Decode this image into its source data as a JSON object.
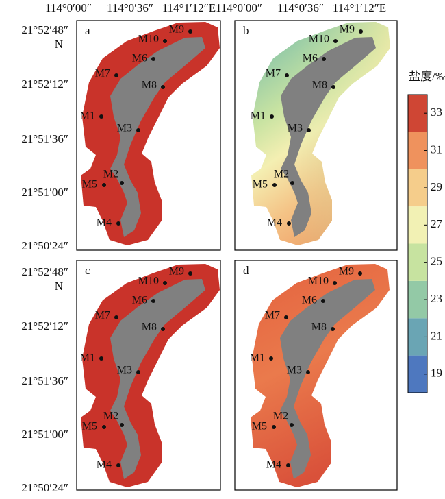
{
  "x_axis_labels": [
    "114°0′00″",
    "114°0′36″",
    "114°1′12″E"
  ],
  "y_axis_labels": [
    "21°52′48″",
    "N",
    "21°52′12″",
    "21°51′36″",
    "21°51′00″",
    "21°50′24″"
  ],
  "panels": [
    {
      "label": "a"
    },
    {
      "label": "b"
    },
    {
      "label": "c"
    },
    {
      "label": "d"
    }
  ],
  "stations": [
    "M1",
    "M2",
    "M3",
    "M4",
    "M5",
    "M6",
    "M7",
    "M8",
    "M9",
    "M10"
  ],
  "colorbar": {
    "title": "盐度/‰",
    "lim": [
      18,
      34
    ],
    "ticks": [
      19,
      21,
      23,
      25,
      27,
      29,
      31,
      33
    ],
    "colors": [
      "#4e78bf",
      "#6aa5b4",
      "#93c9a6",
      "#c7e3a0",
      "#f2f1b4",
      "#f5cd8b",
      "#ef925d",
      "#cf4634"
    ]
  }
}
